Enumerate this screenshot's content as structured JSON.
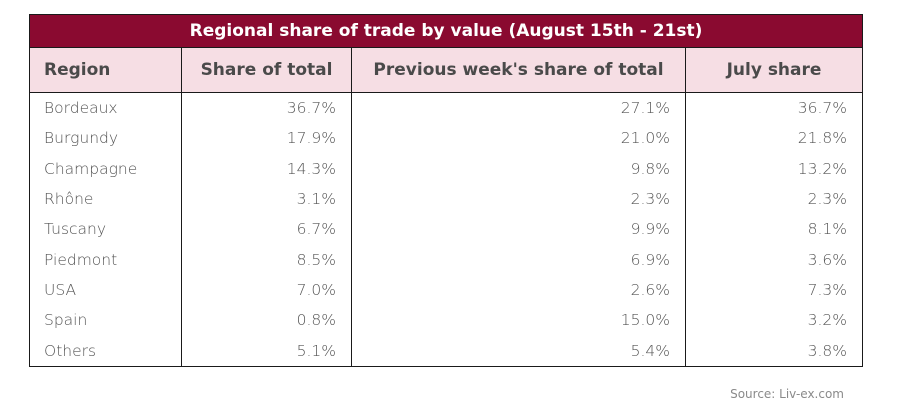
{
  "chart_data": {
    "type": "table",
    "title": "Regional share of trade by value (August 15th - 21st)",
    "columns": [
      "Region",
      "Share of total",
      "Previous week's share of total",
      "July share"
    ],
    "rows": [
      [
        "Bordeaux",
        "36.7%",
        "27.1%",
        "36.7%"
      ],
      [
        "Burgundy",
        "17.9%",
        "21.0%",
        "21.8%"
      ],
      [
        "Champagne",
        "14.3%",
        "9.8%",
        "13.2%"
      ],
      [
        "Rhône",
        "3.1%",
        "2.3%",
        "2.3%"
      ],
      [
        "Tuscany",
        "6.7%",
        "9.9%",
        "8.1%"
      ],
      [
        "Piedmont",
        "8.5%",
        "6.9%",
        "3.6%"
      ],
      [
        "USA",
        "7.0%",
        "2.6%",
        "7.3%"
      ],
      [
        "Spain",
        "0.8%",
        "15.0%",
        "3.2%"
      ],
      [
        "Others",
        "5.1%",
        "5.4%",
        "3.8%"
      ]
    ],
    "source": "Source: Liv-ex.com",
    "colors": {
      "title_bg": "#8a0a30",
      "header_bg": "#f6dee4"
    }
  }
}
